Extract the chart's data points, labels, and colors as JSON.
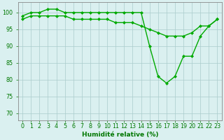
{
  "line1_x": [
    0,
    1,
    2,
    3,
    4,
    5,
    6,
    7,
    8,
    9,
    10,
    11,
    12,
    13,
    14,
    15,
    16,
    17,
    18,
    19,
    20,
    21,
    22,
    23
  ],
  "line1_y": [
    99,
    100,
    100,
    101,
    101,
    100,
    100,
    100,
    100,
    100,
    100,
    100,
    100,
    100,
    100,
    90,
    81,
    79,
    81,
    87,
    87,
    93,
    96,
    98
  ],
  "line2_x": [
    0,
    1,
    2,
    3,
    4,
    5,
    6,
    7,
    8,
    9,
    10,
    11,
    12,
    13,
    14,
    15,
    16,
    17,
    18,
    19,
    20,
    21,
    22,
    23
  ],
  "line2_y": [
    98,
    99,
    99,
    99,
    99,
    99,
    98,
    98,
    98,
    98,
    98,
    97,
    97,
    97,
    96,
    95,
    94,
    93,
    93,
    93,
    94,
    96,
    96,
    98
  ],
  "line_color": "#00aa00",
  "marker": "D",
  "markersize": 2.0,
  "linewidth": 1.0,
  "xlabel": "Humidité relative (%)",
  "xlabel_color": "#007700",
  "xlabel_fontsize": 6.5,
  "ylabel_ticks": [
    70,
    75,
    80,
    85,
    90,
    95,
    100
  ],
  "xlim": [
    -0.5,
    23.5
  ],
  "ylim": [
    68,
    103
  ],
  "background_color": "#daf0f0",
  "grid_color": "#aacccc",
  "tick_color": "#007700",
  "tick_fontsize": 5.8,
  "xtick_labels": [
    "0",
    "1",
    "2",
    "3",
    "4",
    "5",
    "6",
    "7",
    "8",
    "9",
    "10",
    "11",
    "12",
    "13",
    "14",
    "15",
    "16",
    "17",
    "18",
    "19",
    "20",
    "21",
    "22",
    "23"
  ]
}
